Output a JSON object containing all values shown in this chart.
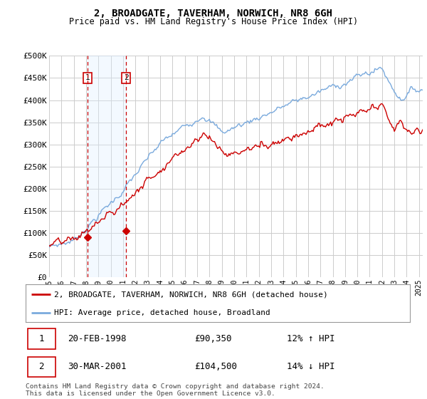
{
  "title": "2, BROADGATE, TAVERHAM, NORWICH, NR8 6GH",
  "subtitle": "Price paid vs. HM Land Registry's House Price Index (HPI)",
  "ylabel_ticks": [
    "£0",
    "£50K",
    "£100K",
    "£150K",
    "£200K",
    "£250K",
    "£300K",
    "£350K",
    "£400K",
    "£450K",
    "£500K"
  ],
  "ytick_values": [
    0,
    50000,
    100000,
    150000,
    200000,
    250000,
    300000,
    350000,
    400000,
    450000,
    500000
  ],
  "ylim": [
    0,
    500000
  ],
  "xlim_start": 1995.0,
  "xlim_end": 2025.3,
  "background_color": "#ffffff",
  "plot_bg_color": "#ffffff",
  "grid_color": "#cccccc",
  "sale1_date_label": "20-FEB-1998",
  "sale1_price": 90350,
  "sale1_price_label": "£90,350",
  "sale1_hpi_label": "12% ↑ HPI",
  "sale1_x": 1998.13,
  "sale2_date_label": "30-MAR-2001",
  "sale2_price": 104500,
  "sale2_price_label": "£104,500",
  "sale2_hpi_label": "14% ↓ HPI",
  "sale2_x": 2001.25,
  "sale_vline_color": "#cc0000",
  "sale_highlight_color": "#ddeeff",
  "legend_line1": "2, BROADGATE, TAVERHAM, NORWICH, NR8 6GH (detached house)",
  "legend_line2": "HPI: Average price, detached house, Broadland",
  "legend_line1_color": "#cc0000",
  "legend_line2_color": "#7aaadd",
  "footnote": "Contains HM Land Registry data © Crown copyright and database right 2024.\nThis data is licensed under the Open Government Licence v3.0.",
  "xtick_years": [
    1995,
    1996,
    1997,
    1998,
    1999,
    2000,
    2001,
    2002,
    2003,
    2004,
    2005,
    2006,
    2007,
    2008,
    2009,
    2010,
    2011,
    2012,
    2013,
    2014,
    2015,
    2016,
    2017,
    2018,
    2019,
    2020,
    2021,
    2022,
    2023,
    2024,
    2025
  ]
}
